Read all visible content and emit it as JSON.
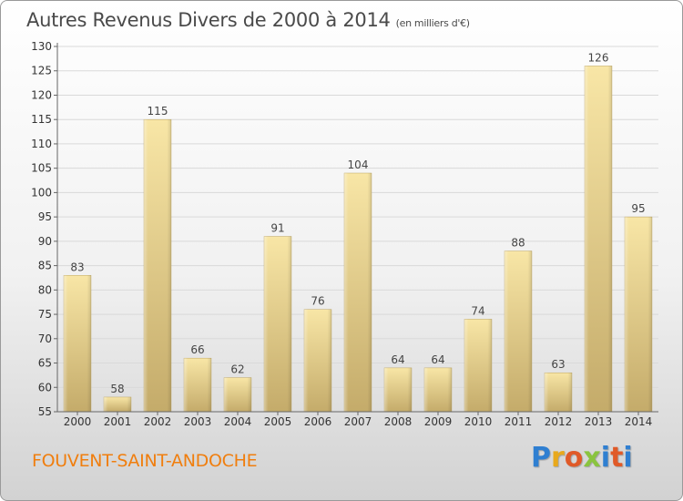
{
  "title": "Autres Revenus Divers de 2000 à 2014",
  "title_unit": "(en milliers d'€)",
  "place": "FOUVENT-SAINT-ANDOCHE",
  "logo": {
    "letters": [
      "P",
      "r",
      "o",
      "x",
      "i",
      "t",
      "i"
    ]
  },
  "colors": {
    "bar_light": "#f7e3a0",
    "bar_dark": "#c5ad6d",
    "place_text": "#f07e0e",
    "grid": "#d9d9d9"
  },
  "chart_data": {
    "type": "bar",
    "categories": [
      "2000",
      "2001",
      "2002",
      "2003",
      "2004",
      "2005",
      "2006",
      "2007",
      "2008",
      "2009",
      "2010",
      "2011",
      "2012",
      "2013",
      "2014"
    ],
    "values": [
      83,
      58,
      115,
      66,
      62,
      91,
      76,
      104,
      64,
      64,
      74,
      88,
      63,
      126,
      95
    ],
    "ylim": [
      55,
      130
    ],
    "yticks": [
      55,
      60,
      65,
      70,
      75,
      80,
      85,
      90,
      95,
      100,
      105,
      110,
      115,
      120,
      125,
      130
    ],
    "grid": true
  }
}
